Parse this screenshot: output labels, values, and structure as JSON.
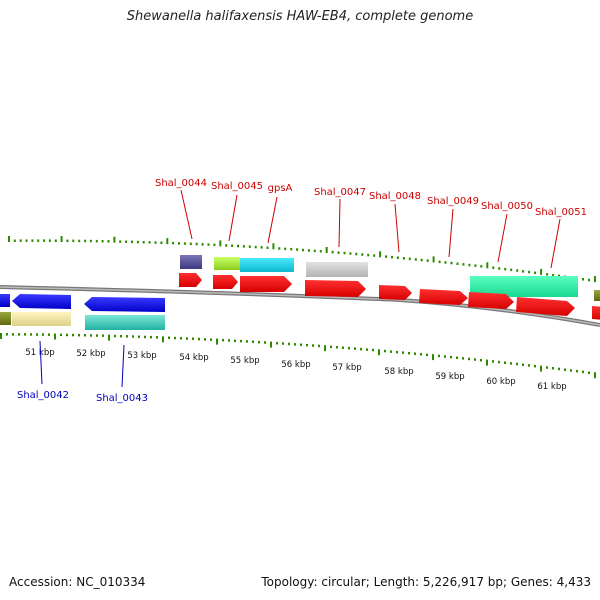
{
  "title": "Shewanella halifaxensis HAW-EB4, complete genome",
  "footer": {
    "accession": "Accession: NC_010334",
    "summary": "Topology: circular; Length: 5,226,917 bp; Genes: 4,433"
  },
  "colors": {
    "backbone": "#888888",
    "gc_skew": "#2d8a00",
    "label_forward": "#cc0000",
    "label_reverse": "#0000bb"
  },
  "scale_labels": [
    "51 kbp",
    "52 kbp",
    "53 kbp",
    "54 kbp",
    "55 kbp",
    "56 kbp",
    "57 kbp",
    "58 kbp",
    "59 kbp",
    "60 kbp",
    "61 kbp"
  ],
  "gene_labels_forward": [
    "Shal_0044",
    "Shal_0045",
    "gpsA",
    "Shal_0047",
    "Shal_0048",
    "Shal_0049",
    "Shal_0050",
    "Shal_0051"
  ],
  "gene_labels_reverse": [
    "Shal_0042",
    "Shal_0043"
  ]
}
